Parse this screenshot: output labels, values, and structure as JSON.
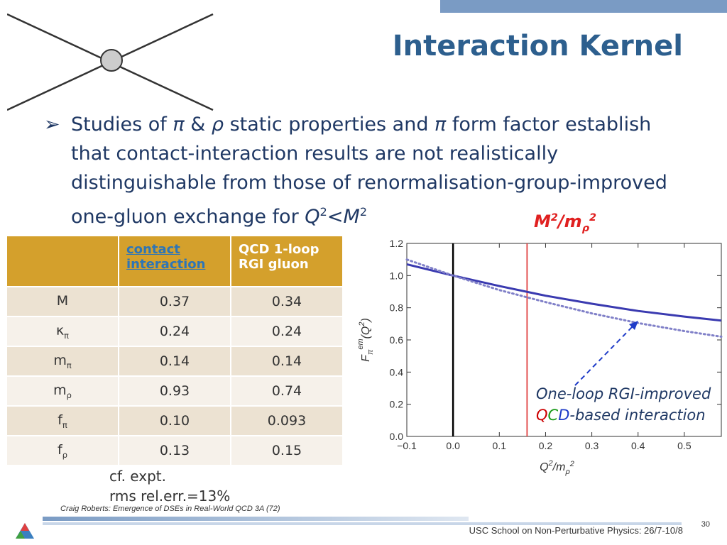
{
  "slide": {
    "title": "Interaction Kernel",
    "bullet_parts": {
      "p1": "Studies of ",
      "pi": "π",
      "p2": " & ",
      "rho": "ρ",
      "p3": " static properties and ",
      "pi2": "π",
      "p4": " form factor establish that contact-interaction results are not realistically distinguishable from those of renormalisation-group-improved one-gluon exchange for ",
      "Q": "Q",
      "exp2a": "2",
      "lt": "<",
      "M": "M",
      "exp2b": "2"
    },
    "ratio_label": {
      "M": "M",
      "exp": "2",
      "slash": "/m",
      "sub": "ρ",
      "exp2": "2"
    },
    "cf_line1": "cf. expt.",
    "cf_line2": "rms rel.err.=13%",
    "credit": "Craig Roberts: Emergence of DSEs in Real-World QCD 3A (72)",
    "school": "USC School on Non-Perturbative Physics: 26/7-10/8",
    "page": "30",
    "annotation": {
      "line1": "One-loop RGI-improved",
      "q": "Q",
      "c": "C",
      "d": "D",
      "rest": "-based  interaction"
    }
  },
  "table": {
    "headers": [
      "contact interaction",
      "QCD 1-loop RGI gluon"
    ],
    "rows": [
      {
        "name": "M",
        "sub": "",
        "contact": "0.37",
        "qcd": "0.34"
      },
      {
        "name": "κ",
        "sub": "π",
        "contact": "0.24",
        "qcd": "0.24"
      },
      {
        "name": "m",
        "sub": "π",
        "contact": "0.14",
        "qcd": "0.14"
      },
      {
        "name": "m",
        "sub": "ρ",
        "contact": "0.93",
        "qcd": "0.74"
      },
      {
        "name": "f",
        "sub": "π",
        "contact": "0.10",
        "qcd": "0.093"
      },
      {
        "name": "f",
        "sub": "ρ",
        "contact": "0.13",
        "qcd": "0.15"
      }
    ]
  },
  "chart_data": {
    "type": "line",
    "xlim": [
      -0.1,
      0.58
    ],
    "ylim": [
      0.0,
      1.2
    ],
    "xticks": [
      -0.1,
      0.0,
      0.1,
      0.2,
      0.3,
      0.4,
      0.5
    ],
    "xtick_labels": [
      "−0.1",
      "0.0",
      "0.1",
      "0.2",
      "0.3",
      "0.4",
      "0.5"
    ],
    "yticks": [
      0.0,
      0.2,
      0.4,
      0.6,
      0.8,
      1.0,
      1.2
    ],
    "ytick_labels": [
      "0.0",
      "0.2",
      "0.4",
      "0.6",
      "0.8",
      "1.0",
      "1.2"
    ],
    "xlabel": {
      "Q": "Q",
      "exp": "2",
      "slash": "/m",
      "sub": "ρ",
      "exp2": "2"
    },
    "ylabel": {
      "F": "F",
      "sub": "π",
      "sup": "em",
      "paren": "(Q",
      "exp": "2",
      "close": ")"
    },
    "vlines": [
      {
        "x": 0.0,
        "color": "#000000"
      },
      {
        "x": 0.16,
        "color": "#e04040"
      }
    ],
    "series": [
      {
        "style": "solid",
        "color": "#3a3ab0",
        "x": [
          -0.1,
          0.0,
          0.1,
          0.2,
          0.3,
          0.4,
          0.5,
          0.58
        ],
        "y": [
          1.07,
          1.0,
          0.935,
          0.875,
          0.825,
          0.78,
          0.745,
          0.72
        ]
      },
      {
        "style": "dotted",
        "color": "#8080c8",
        "x": [
          -0.1,
          0.0,
          0.1,
          0.2,
          0.3,
          0.4,
          0.5,
          0.58
        ],
        "y": [
          1.1,
          1.0,
          0.91,
          0.835,
          0.765,
          0.705,
          0.655,
          0.62
        ]
      }
    ]
  },
  "colors": {
    "title": "#2d5f8e",
    "header": "#d4a02c",
    "accent_red": "#e02020"
  }
}
